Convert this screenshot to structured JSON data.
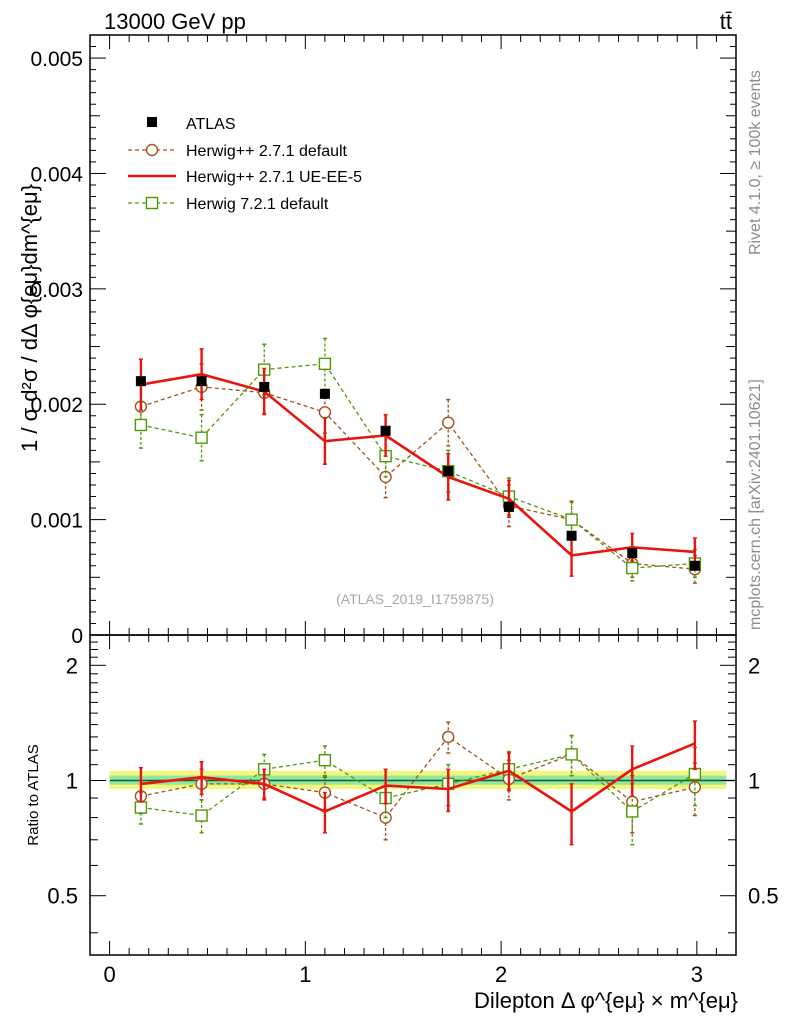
{
  "header": {
    "energy_label": "13000 GeV pp",
    "process_label": "tt̄"
  },
  "side": {
    "rivet_label": "Rivet 4.1.0, ≥ 100k events",
    "mcplots_label": "mcplots.cern.ch [arXiv:2401.10621]"
  },
  "top_panel": {
    "ylabel": "1 / σ  d²σ / dΔ φ{eμ}dm^{eμ}",
    "watermark": "(ATLAS_2019_I1759875)",
    "y_ticks": [
      "0",
      "0.001",
      "0.002",
      "0.003",
      "0.004",
      "0.005"
    ]
  },
  "bottom_panel": {
    "ylabel": "Ratio to ATLAS",
    "y_ticks": [
      "0.5",
      "1",
      "2"
    ]
  },
  "xaxis": {
    "label": "Dilepton Δ φ^{eμ} × m^{eμ}",
    "ticks": [
      "0",
      "1",
      "2",
      "3"
    ]
  },
  "chart_data": {
    "type": "scatter",
    "title": "13000 GeV pp",
    "xlabel": "Dilepton Δ φ^{eμ} × m^{eμ}",
    "ylabel": "1 / σ  d²σ / dΔ φ{eμ}dm^{eμ}",
    "xlim": [
      -0.1,
      3.2
    ],
    "ylim": [
      0,
      0.0052
    ],
    "ratio_ylim_log": [
      0.35,
      2.4
    ],
    "x": [
      0.16,
      0.47,
      0.79,
      1.1,
      1.41,
      1.73,
      2.04,
      2.36,
      2.67,
      2.99
    ],
    "series": [
      {
        "name": "ATLAS",
        "color": "#000000",
        "marker": "filled-square",
        "values": [
          0.0022,
          0.0022,
          0.00215,
          0.00209,
          0.00177,
          0.00142,
          0.00111,
          0.00086,
          0.00071,
          0.0006
        ],
        "errors": [
          4e-05,
          4e-05,
          4e-05,
          4e-05,
          3e-05,
          3e-05,
          3e-05,
          2e-05,
          2e-05,
          2e-05
        ],
        "ratio": [
          1,
          1,
          1,
          1,
          1,
          1,
          1,
          1,
          1,
          1
        ],
        "ratio_errors": [
          0.05,
          0.05,
          0.05,
          0.05,
          0.05,
          0.05,
          0.05,
          0.05,
          0.05,
          0.05
        ]
      },
      {
        "name": "Herwig++ 2.7.1 default",
        "color": "#a0521c",
        "marker": "open-circle",
        "dashed": true,
        "values": [
          0.00198,
          0.00215,
          0.0021,
          0.00193,
          0.00137,
          0.00184,
          0.00112,
          0.001,
          0.00062,
          0.00057
        ],
        "errors": [
          0.0002,
          0.0002,
          0.00018,
          0.00018,
          0.00018,
          0.0002,
          0.00018,
          0.00016,
          0.00012,
          0.00012
        ],
        "ratio": [
          0.91,
          0.98,
          0.98,
          0.93,
          0.8,
          1.3,
          1.01,
          1.17,
          0.88,
          0.96
        ],
        "ratio_errors": [
          0.09,
          0.09,
          0.08,
          0.09,
          0.1,
          0.12,
          0.12,
          0.14,
          0.15,
          0.15
        ]
      },
      {
        "name": "Herwig++ 2.7.1 UE-EE-5",
        "color": "#e8150f",
        "marker": "none",
        "dashed": false,
        "values": [
          0.00217,
          0.00226,
          0.00211,
          0.00168,
          0.00173,
          0.00137,
          0.00118,
          0.00069,
          0.00076,
          0.00072
        ],
        "errors": [
          0.00022,
          0.00022,
          0.0002,
          0.0002,
          0.00018,
          0.0002,
          0.00016,
          0.00018,
          0.00012,
          0.00012
        ],
        "ratio": [
          0.98,
          1.02,
          0.98,
          0.83,
          0.97,
          0.95,
          1.06,
          0.83,
          1.07,
          1.25
        ],
        "ratio_errors": [
          0.1,
          0.1,
          0.09,
          0.1,
          0.1,
          0.12,
          0.12,
          0.15,
          0.16,
          0.18
        ]
      },
      {
        "name": "Herwig 7.2.1 default",
        "color": "#4e9a06",
        "marker": "open-square",
        "dashed": true,
        "values": [
          0.00182,
          0.00171,
          0.0023,
          0.00235,
          0.00155,
          0.00142,
          0.0012,
          0.001,
          0.00058,
          0.00062
        ],
        "errors": [
          0.0002,
          0.0002,
          0.00022,
          0.00022,
          0.00018,
          0.00018,
          0.00016,
          0.00015,
          0.00011,
          0.00012
        ],
        "ratio": [
          0.85,
          0.81,
          1.07,
          1.13,
          0.9,
          0.98,
          1.07,
          1.17,
          0.83,
          1.04
        ],
        "ratio_errors": [
          0.08,
          0.08,
          0.1,
          0.1,
          0.1,
          0.12,
          0.12,
          0.14,
          0.15,
          0.18
        ]
      }
    ]
  }
}
